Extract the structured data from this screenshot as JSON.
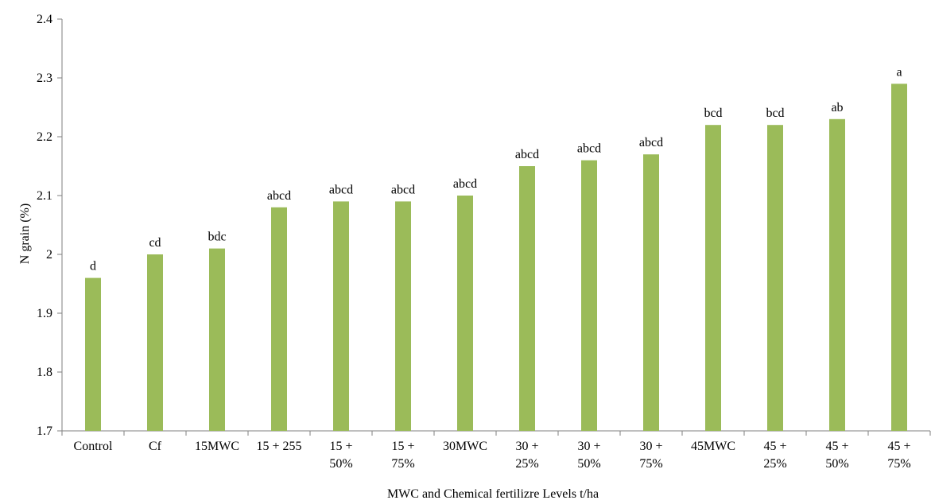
{
  "chart_data": {
    "type": "bar",
    "categories": [
      [
        "Control"
      ],
      [
        "Cf"
      ],
      [
        "15MWC"
      ],
      [
        "15 + 255"
      ],
      [
        "15 +",
        "50%"
      ],
      [
        "15 +",
        "75%"
      ],
      [
        "30MWC"
      ],
      [
        "30 +",
        "25%"
      ],
      [
        "30 +",
        "50%"
      ],
      [
        "30 +",
        "75%"
      ],
      [
        "45MWC"
      ],
      [
        "45 +",
        "25%"
      ],
      [
        "45 +",
        "50%"
      ],
      [
        "45 +",
        "75%"
      ]
    ],
    "values": [
      1.96,
      2.0,
      2.01,
      2.08,
      2.09,
      2.09,
      2.1,
      2.15,
      2.16,
      2.17,
      2.22,
      2.22,
      2.23,
      2.29
    ],
    "data_labels": [
      "d",
      "cd",
      "bdc",
      "abcd",
      "abcd",
      "abcd",
      "abcd",
      "abcd",
      "abcd",
      "abcd",
      "bcd",
      "bcd",
      "ab",
      "a"
    ],
    "xlabel": "MWC and Chemical fertilizre Levels t/ha",
    "ylabel": "N grain (%)",
    "ylim": [
      1.7,
      2.4
    ],
    "yticks": [
      "1.7",
      "1.8",
      "1.9",
      "2",
      "2.1",
      "2.2",
      "2.3",
      "2.4"
    ],
    "grid": false,
    "bar_color": "#9bbb59"
  }
}
